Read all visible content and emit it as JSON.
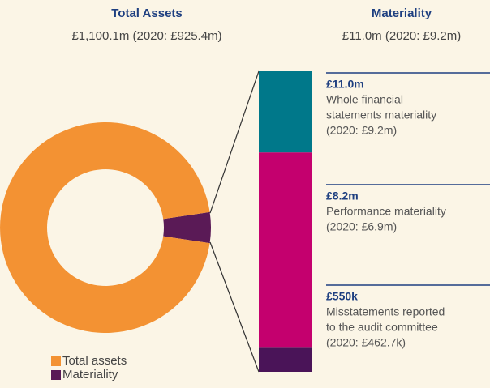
{
  "chart_data": [
    {
      "type": "pie",
      "title": "Total Assets",
      "subtitle": "£1,100.1m (2020: £925.4m)",
      "categories": [
        "Total assets",
        "Materiality"
      ],
      "values": [
        95.3,
        4.7
      ],
      "colors": [
        "#f39233",
        "#5a1a56"
      ],
      "legend": "bottom-left"
    },
    {
      "type": "stacked-bar",
      "title": "Materiality",
      "subtitle": "£11.0m (2020: £9.2m)",
      "values": [
        27,
        65,
        8
      ],
      "colors": [
        "#00788a",
        "#c4006e",
        "#4a1458"
      ],
      "annotations": [
        {
          "label": "£11.0m",
          "lines": [
            "Whole financial",
            "statements materiality",
            "(2020: £9.2m)"
          ]
        },
        {
          "label": "£8.2m",
          "lines": [
            "Performance materiality",
            "(2020: £6.9m)"
          ]
        },
        {
          "label": "£550k",
          "lines": [
            "Misstatements reported",
            "to the audit committee",
            "(2020: £462.7k)"
          ]
        }
      ]
    }
  ]
}
